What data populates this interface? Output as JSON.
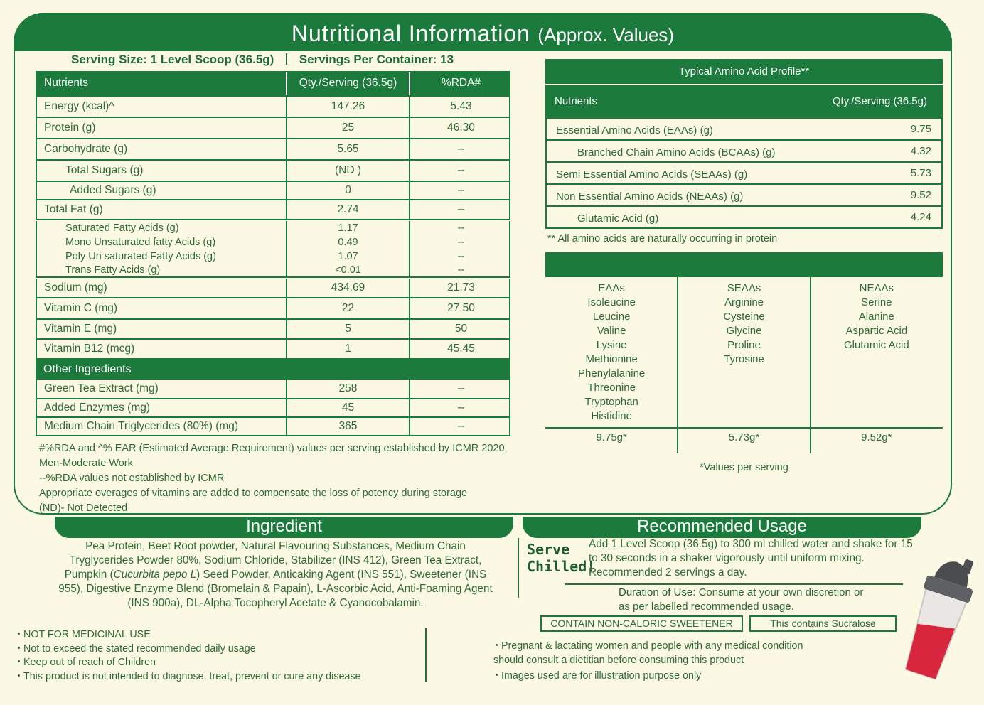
{
  "header": {
    "title": "Nutritional Information",
    "subtitle": "(Approx. Values)"
  },
  "serving": {
    "size": "Serving Size: 1 Level Scoop (36.5g)",
    "per_container": "Servings Per Container: 13"
  },
  "nutrition_table": {
    "columns": [
      "Nutrients",
      "Qty./Serving (36.5g)",
      "%RDA#"
    ],
    "rows": [
      {
        "name": "Energy (kcal)^",
        "qty": "147.26",
        "rda": "5.43"
      },
      {
        "name": "Protein (g)",
        "qty": "25",
        "rda": "46.30"
      },
      {
        "name": "Carbohydrate (g)",
        "qty": "5.65",
        "rda": "--",
        "sub": [
          {
            "name": "Total Sugars (g)",
            "qty": "(ND )",
            "rda": "--"
          },
          {
            "name": "Added Sugars (g)",
            "qty": "0",
            "rda": "--"
          }
        ]
      },
      {
        "name": "Total Fat (g)",
        "qty": "2.74",
        "rda": "--",
        "sub": [
          {
            "name": "Saturated Fatty Acids (g)",
            "qty": "1.17",
            "rda": "--"
          },
          {
            "name": "Mono Unsaturated fatty Acids (g)",
            "qty": "0.49",
            "rda": "--"
          },
          {
            "name": "Poly Un saturated Fatty Acids (g)",
            "qty": "1.07",
            "rda": "--"
          },
          {
            "name": "Trans Fatty Acids (g)",
            "qty": "<0.01",
            "rda": "--"
          }
        ]
      },
      {
        "name": "Sodium (mg)",
        "qty": "434.69",
        "rda": "21.73"
      },
      {
        "name": "Vitamin C (mg)",
        "qty": "22",
        "rda": "27.50"
      },
      {
        "name": "Vitamin E (mg)",
        "qty": "5",
        "rda": "50"
      },
      {
        "name": "Vitamin B12 (mcg)",
        "qty": "1",
        "rda": "45.45"
      }
    ]
  },
  "other_ingredients": {
    "title": "Other Ingredients",
    "rows": [
      {
        "name": "Green Tea Extract (mg)",
        "qty": "258",
        "rda": "--"
      },
      {
        "name": "Added Enzymes (mg)",
        "qty": "45",
        "rda": "--"
      },
      {
        "name": "Medium Chain Triglycerides (80%) (mg)",
        "qty": "365",
        "rda": "--"
      }
    ]
  },
  "footnotes": [
    "#%RDA and ^% EAR (Estimated Average Requirement) values per serving established by ICMR 2020, Men-Moderate Work",
    "--%RDA values not established by ICMR",
    "Appropriate overages of vitamins are added to compensate the loss of potency during storage",
    "(ND)- Not Detected"
  ],
  "amino_profile": {
    "title": "Typical Amino Acid  Profile**",
    "columns": [
      "Nutrients",
      "Qty./Serving (36.5g)"
    ],
    "rows": [
      {
        "name": "Essential Amino Acids (EAAs) (g)",
        "qty": "9.75",
        "sub": [
          {
            "name": "Branched Chain Amino Acids (BCAAs) (g)",
            "qty": "4.32"
          }
        ]
      },
      {
        "name": "Semi Essential Amino Acids (SEAAs) (g)",
        "qty": "5.73"
      },
      {
        "name": "Non Essential Amino Acids (NEAAs) (g)",
        "qty": "9.52",
        "sub": [
          {
            "name": "Glutamic Acid (g)",
            "qty": "4.24"
          }
        ]
      }
    ],
    "note": "** All amino acids are naturally occurring in protein"
  },
  "amino_groups": {
    "columns": [
      {
        "name": "EAAs",
        "items": [
          "Isoleucine",
          "Leucine",
          "Valine",
          "Lysine",
          "Methionine",
          "Phenylalanine",
          "Threonine",
          "Tryptophan",
          "Histidine"
        ],
        "total": "9.75g*"
      },
      {
        "name": "SEAAs",
        "items": [
          "Arginine",
          "Cysteine",
          "Glycine",
          "Proline",
          "Tyrosine"
        ],
        "total": "5.73g*"
      },
      {
        "name": "NEAAs",
        "items": [
          "Serine",
          "Alanine",
          "Aspartic Acid",
          "Glutamic Acid"
        ],
        "total": "9.52g*"
      }
    ],
    "note": "*Values per serving"
  },
  "ingredient": {
    "title": "Ingredient",
    "text": [
      "Pea Protein, Beet Root powder, Natural Flavouring Substances, Medium Chain Tryglycerides Powder 80%, Sodium Chloride, Stabilizer (INS 412), Green Tea Extract, Pumpkin (",
      "Cucurbita pepo L",
      ") Seed Powder, Anticaking Agent (INS 551), Sweetener (INS 955), Digestive Enzyme Blend (Bromelain & Papain), L-Ascorbic Acid, Anti-Foaming Agent (INS 900a), DL-Alpha Tocopheryl Acetate & Cyanocobalamin."
    ]
  },
  "usage": {
    "title": "Recommended Usage",
    "serve": "Serve Chilled!",
    "directions": "Add 1 Level Scoop (36.5g) to 300 ml chilled water and shake for 15 to 30 seconds in a shaker vigorously until uniform mixing. Recommended 2 servings a day.",
    "duration_label": "Duration of Use:",
    "duration_text": "Consume at your own discretion or as per labelled recommended usage.",
    "badges": [
      "CONTAIN NON-CALORIC SWEETENER",
      "This contains Sucralose"
    ]
  },
  "warnings_left": [
    "NOT FOR MEDICINAL USE",
    "Not to exceed the stated recommended daily usage",
    "Keep out of reach of Children",
    "This product is not intended to diagnose, treat, prevent or cure any disease"
  ],
  "warnings_right": [
    "Pregnant & lactating women and people with any medical condition should consult a dietitian before consuming this product",
    "Images used are for illustration purpose only"
  ]
}
